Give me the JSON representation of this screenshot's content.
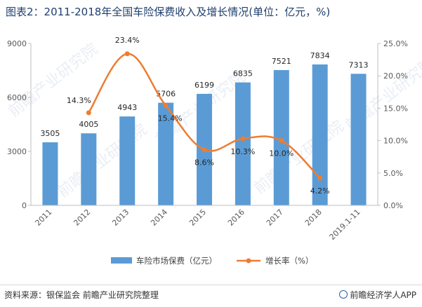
{
  "title": "图表2：2011-2018年全国车险保费收入及增长情况(单位：亿元，%)",
  "source": "资料来源：银保监会 前瞻产业研究院整理",
  "brand": "前瞻经济学人APP",
  "watermark": "前瞻产业研究院",
  "colors": {
    "bar": "#5b9bd5",
    "line": "#ed7d31",
    "title": "#1f3f6d"
  },
  "chart_data": {
    "type": "bar",
    "categories": [
      "2011",
      "2012",
      "2013",
      "2014",
      "2015",
      "2016",
      "2017",
      "2018",
      "2019.1-11"
    ],
    "series": [
      {
        "name": "车险市场保费（亿元）",
        "type": "bar",
        "axis": "left",
        "values": [
          3505,
          4005,
          4943,
          5706,
          6199,
          6835,
          7521,
          7834,
          7313
        ],
        "labels": [
          "3505",
          "4005",
          "4943",
          "5706",
          "6199",
          "6835",
          "7521",
          "7834",
          "7313"
        ]
      },
      {
        "name": "增长率（%）",
        "type": "line",
        "axis": "right",
        "values": [
          null,
          14.3,
          23.4,
          15.4,
          8.6,
          10.3,
          10.0,
          4.2,
          null
        ],
        "labels": [
          "",
          "14.3%",
          "23.4%",
          "15.4%",
          "8.6%",
          "10.3%",
          "10.0%",
          "4.2%",
          ""
        ]
      }
    ],
    "left_axis": {
      "min": 0,
      "max": 9000,
      "ticks": [
        0,
        3000,
        6000,
        9000
      ],
      "tick_labels": [
        "0",
        "3000",
        "6000",
        "9000"
      ]
    },
    "right_axis": {
      "min": 0,
      "max": 25,
      "ticks": [
        0,
        5,
        10,
        15,
        20,
        25
      ],
      "tick_labels": [
        "0.0%",
        "5.0%",
        "10.0%",
        "15.0%",
        "20.0%",
        "25.0%"
      ]
    },
    "grid": false,
    "legend_position": "bottom"
  }
}
